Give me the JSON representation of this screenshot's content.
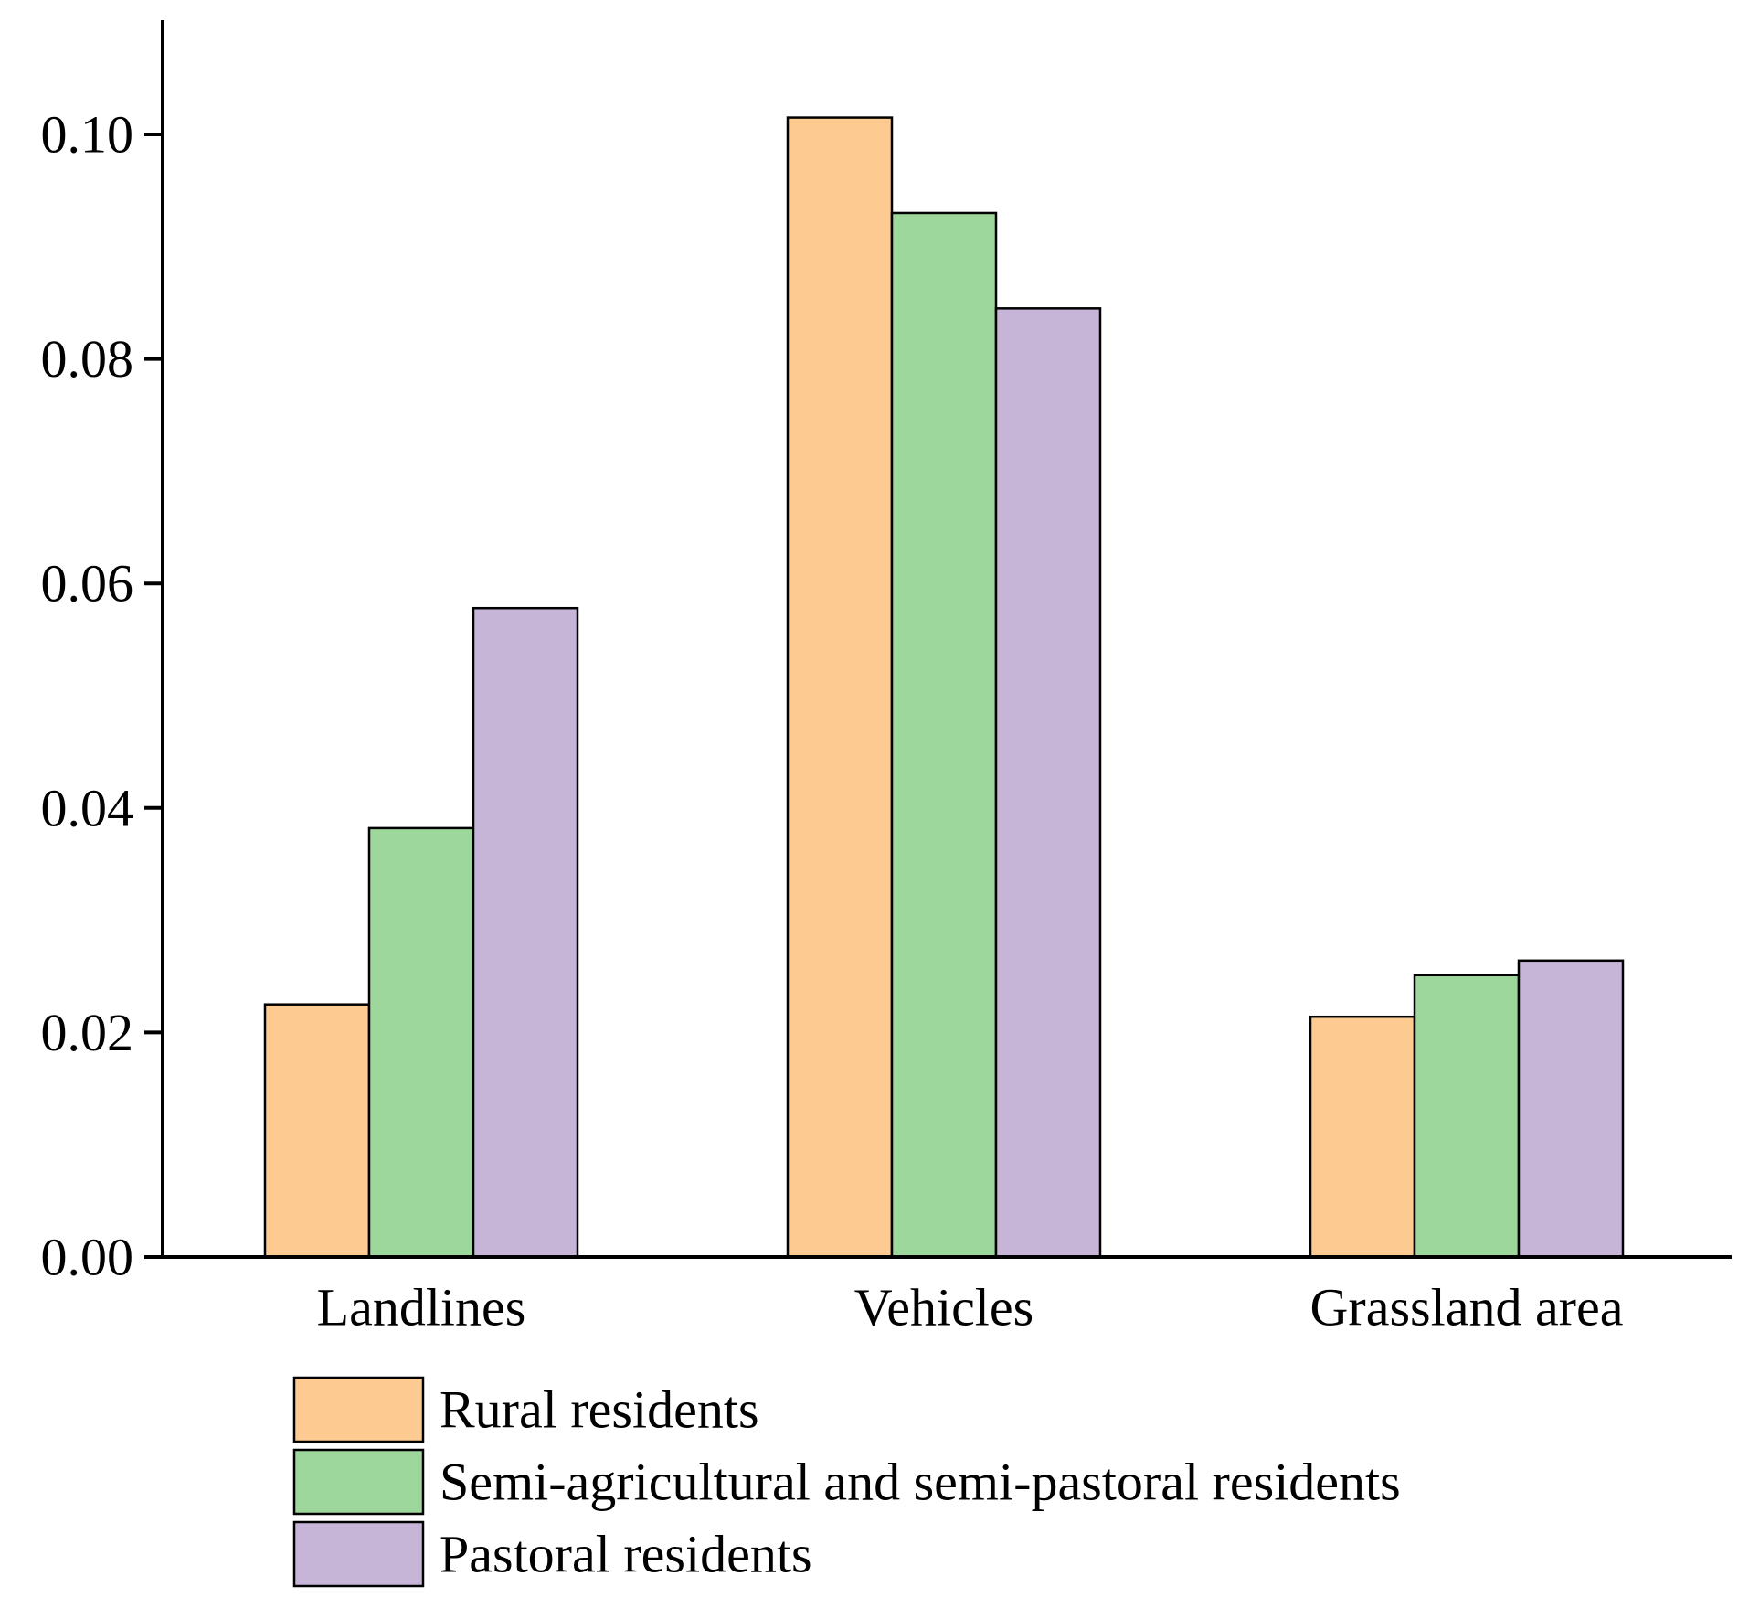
{
  "chart_data": {
    "type": "bar",
    "title": "",
    "xlabel": "",
    "ylabel": "",
    "categories": [
      "Landlines",
      "Vehicles",
      "Grassland area"
    ],
    "series": [
      {
        "name": "Rural residents",
        "color": "#FDCB92",
        "values": [
          0.0225,
          0.1015,
          0.0214
        ]
      },
      {
        "name": "Semi-agricultural and semi-pastoral residents",
        "color": "#9DD79C",
        "values": [
          0.0382,
          0.093,
          0.0251
        ]
      },
      {
        "name": "Pastoral residents",
        "color": "#C7B5D8",
        "values": [
          0.0578,
          0.0845,
          0.0264
        ]
      }
    ],
    "ylim": [
      0,
      0.11
    ],
    "yticks": [
      0.0,
      0.02,
      0.04,
      0.06,
      0.08,
      0.1
    ],
    "ytick_labels": [
      "0.00",
      "0.02",
      "0.04",
      "0.06",
      "0.08",
      "0.10"
    ],
    "grid": false,
    "legend_position": "bottom"
  }
}
